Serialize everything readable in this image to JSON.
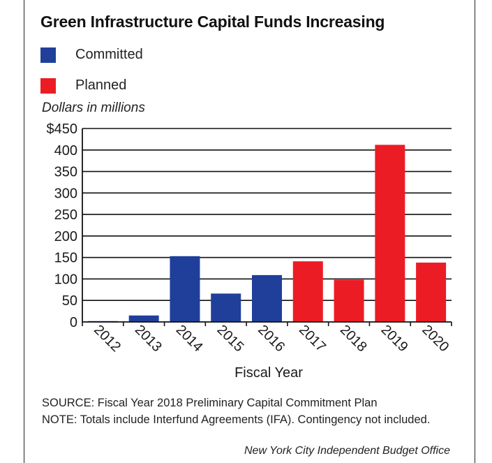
{
  "title": "Green Infrastructure Capital Funds Increasing",
  "legend": [
    {
      "label": "Committed",
      "color": "#1f3f9a"
    },
    {
      "label": "Planned",
      "color": "#ec1c24"
    }
  ],
  "units_label": "Dollars in millions",
  "source": "SOURCE: Fiscal Year 2018 Preliminary Capital Commitment Plan",
  "note": "NOTE: Totals include Interfund Agreements (IFA). Contingency not included.",
  "credit": "New York City Independent Budget Office",
  "chart_data": {
    "type": "bar",
    "title": "Green Infrastructure Capital Funds Increasing",
    "xlabel": "Fiscal Year",
    "ylabel": "Dollars in millions",
    "ylim": [
      0,
      450
    ],
    "yticks": [
      0,
      50,
      100,
      150,
      200,
      250,
      300,
      350,
      400,
      450
    ],
    "ytick_labels": [
      "0",
      "50",
      "100",
      "150",
      "200",
      "250",
      "300",
      "350",
      "400",
      "$450"
    ],
    "grid": true,
    "categories": [
      "2012",
      "2013",
      "2014",
      "2015",
      "2016",
      "2017",
      "2018",
      "2019",
      "2020"
    ],
    "values": [
      2,
      15,
      153,
      66,
      109,
      141,
      98,
      412,
      138
    ],
    "status": [
      "Committed",
      "Committed",
      "Committed",
      "Committed",
      "Committed",
      "Planned",
      "Planned",
      "Planned",
      "Planned"
    ]
  }
}
